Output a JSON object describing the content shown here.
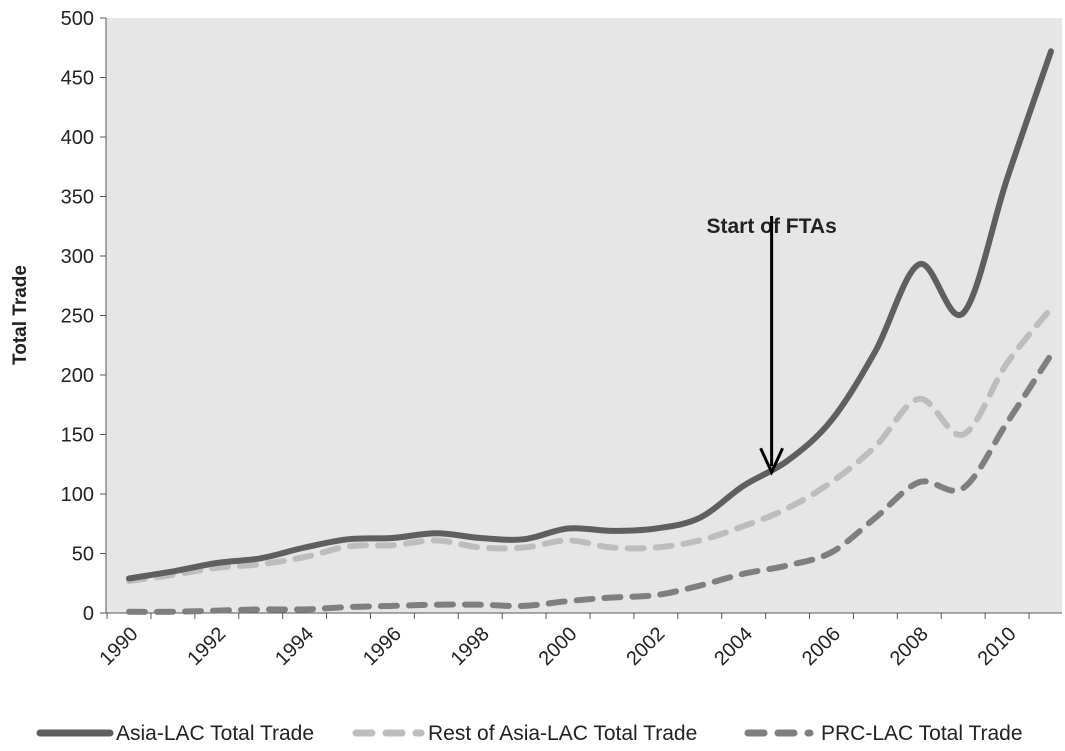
{
  "chart_data": {
    "type": "line",
    "ylabel": "Total Trade",
    "xlabel": "",
    "ylim": [
      0,
      500
    ],
    "y_ticks": [
      "0",
      "50",
      "100",
      "150",
      "200",
      "250",
      "300",
      "350",
      "400",
      "450",
      "500"
    ],
    "x_tick_labels": [
      "1990",
      "1992",
      "1994",
      "1996",
      "1998",
      "2000",
      "2002",
      "2004",
      "2006",
      "2008",
      "2010"
    ],
    "x": [
      1990,
      1991,
      1992,
      1993,
      1994,
      1995,
      1996,
      1997,
      1998,
      1999,
      2000,
      2001,
      2002,
      2003,
      2004,
      2005,
      2006,
      2007,
      2008,
      2009,
      2010,
      2011
    ],
    "series": [
      {
        "name": "Asia-LAC Total Trade",
        "color": "#5f5f5f",
        "style": "solid",
        "values": [
          29,
          35,
          42,
          46,
          55,
          62,
          63,
          67,
          63,
          62,
          71,
          69,
          71,
          80,
          107,
          128,
          162,
          220,
          293,
          252,
          365,
          472
        ]
      },
      {
        "name": "Rest of Asia-LAC Total Trade",
        "color": "#bdbdbd",
        "style": "dashed",
        "values": [
          27,
          32,
          38,
          41,
          47,
          56,
          57,
          61,
          55,
          55,
          61,
          55,
          55,
          61,
          73,
          88,
          110,
          140,
          180,
          150,
          210,
          256
        ]
      },
      {
        "name": "PRC-LAC Total Trade",
        "color": "#7f7f7f",
        "style": "dashed",
        "values": [
          1,
          1,
          2,
          3,
          3,
          5,
          6,
          7,
          7,
          6,
          10,
          13,
          15,
          23,
          33,
          40,
          51,
          80,
          110,
          105,
          160,
          217
        ]
      }
    ],
    "annotations": [
      {
        "text": "Start of FTAs",
        "x": 2004.5,
        "arrow_from": 300,
        "arrow_to": 120
      }
    ],
    "grid": false,
    "legend_position": "bottom",
    "plot_background": "#e6e6e6"
  }
}
